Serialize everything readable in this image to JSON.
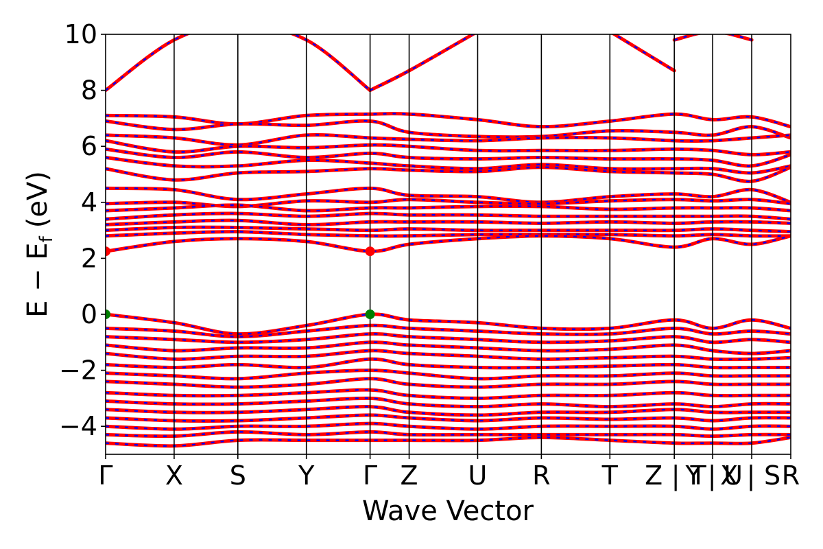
{
  "chart_data": {
    "type": "line",
    "xlabel": "Wave Vector",
    "ylabel": {
      "main": "E − E",
      "sub": "f",
      "unit": "(eV)"
    },
    "ylim": [
      -5,
      10
    ],
    "y_ticks": [
      10,
      8,
      6,
      4,
      2,
      0,
      -2,
      -4
    ],
    "y_tick_labels": [
      "10",
      "8",
      "6",
      "4",
      "2",
      "0",
      "−2",
      "−4"
    ],
    "grid": false,
    "legend": "none",
    "kpoints": [
      {
        "label": "Γ",
        "x": 0.0
      },
      {
        "label": "X",
        "x": 0.1
      },
      {
        "label": "S",
        "x": 0.193
      },
      {
        "label": "Y",
        "x": 0.293
      },
      {
        "label": "Γ",
        "x": 0.386
      },
      {
        "label": "Z",
        "x": 0.443
      },
      {
        "label": "U",
        "x": 0.543
      },
      {
        "label": "R",
        "x": 0.636
      },
      {
        "label": "T",
        "x": 0.736
      },
      {
        "label": "Z|Y",
        "x": 0.83
      },
      {
        "label": "T|X",
        "x": 0.886
      },
      {
        "label": "U|S",
        "x": 0.943
      },
      {
        "label": "R",
        "x": 1.0
      }
    ],
    "x_tick_labels": [
      {
        "text": "Γ",
        "x": 0.0
      },
      {
        "text": "X",
        "x": 0.1
      },
      {
        "text": "S",
        "x": 0.193
      },
      {
        "text": "Y",
        "x": 0.293
      },
      {
        "text": "Γ",
        "x": 0.386
      },
      {
        "text": "Z",
        "x": 0.443
      },
      {
        "text": "U",
        "x": 0.543
      },
      {
        "text": "R",
        "x": 0.636
      },
      {
        "text": "T",
        "x": 0.736
      },
      {
        "text": "Z",
        "x": 0.8
      },
      {
        "text": "|",
        "x": 0.832
      },
      {
        "text": "Y",
        "x": 0.858
      },
      {
        "text": "T",
        "x": 0.865
      },
      {
        "text": "|",
        "x": 0.885
      },
      {
        "text": "X",
        "x": 0.91
      },
      {
        "text": "U",
        "x": 0.916
      },
      {
        "text": "|",
        "x": 0.942
      },
      {
        "text": "S",
        "x": 0.973
      },
      {
        "text": "R",
        "x": 1.0
      }
    ],
    "markers": {
      "cbm": {
        "color": "#ff0000",
        "points": [
          {
            "x": 0.0,
            "y": 2.25
          },
          {
            "x": 0.386,
            "y": 2.25
          }
        ]
      },
      "vbm": {
        "color": "#008000",
        "points": [
          {
            "x": 0.0,
            "y": 0.0
          },
          {
            "x": 0.386,
            "y": 0.0
          }
        ]
      }
    },
    "colors": {
      "spin_up": "#ff0000",
      "spin_down": "#0000ff"
    },
    "series": [
      {
        "x": [
          0,
          0.1,
          0.193,
          0.293,
          0.386
        ],
        "y": [
          8.0,
          9.8,
          10.4,
          9.8,
          8.0
        ]
      },
      {
        "x": [
          0.386,
          0.443,
          0.543
        ],
        "y": [
          8.0,
          8.7,
          10.1
        ]
      },
      {
        "x": [
          0.736,
          0.83
        ],
        "y": [
          10.1,
          8.7
        ]
      },
      {
        "x": [
          0.83,
          0.886,
          0.943
        ],
        "y": [
          9.8,
          10.1,
          9.8
        ]
      },
      {
        "x": [
          0,
          0.1,
          0.193,
          0.293,
          0.386,
          0.443,
          0.543,
          0.636,
          0.736,
          0.83,
          0.886,
          0.943,
          1.0
        ],
        "y": [
          7.1,
          7.05,
          6.8,
          7.1,
          7.15,
          7.15,
          6.95,
          6.7,
          6.9,
          7.15,
          6.95,
          7.05,
          6.7
        ]
      },
      {
        "x": [
          0,
          0.1,
          0.193,
          0.293,
          0.386,
          0.443,
          0.543,
          0.636,
          0.736,
          0.83,
          0.886,
          0.943,
          1.0
        ],
        "y": [
          6.9,
          6.6,
          6.8,
          6.75,
          6.9,
          6.5,
          6.35,
          6.35,
          6.55,
          6.5,
          6.4,
          6.7,
          6.3
        ]
      },
      {
        "x": [
          0,
          0.1,
          0.193,
          0.293,
          0.386,
          0.443,
          0.543,
          0.636,
          0.736,
          0.83,
          0.886,
          0.943,
          1.0
        ],
        "y": [
          6.4,
          6.3,
          6.05,
          6.4,
          6.3,
          6.25,
          6.2,
          6.3,
          6.3,
          6.2,
          6.2,
          6.3,
          6.4
        ]
      },
      {
        "x": [
          0,
          0.1,
          0.193,
          0.293,
          0.386,
          0.443,
          0.543,
          0.636,
          0.736,
          0.83,
          0.886,
          0.943,
          1.0
        ],
        "y": [
          6.2,
          5.8,
          6.0,
          5.95,
          6.05,
          6.0,
          5.85,
          5.85,
          5.85,
          5.9,
          5.85,
          5.7,
          5.8
        ]
      },
      {
        "x": [
          0,
          0.1,
          0.193,
          0.293,
          0.386,
          0.443,
          0.543,
          0.636,
          0.736,
          0.83,
          0.886,
          0.943,
          1.0
        ],
        "y": [
          5.9,
          5.6,
          5.8,
          5.6,
          5.75,
          5.6,
          5.55,
          5.6,
          5.55,
          5.55,
          5.5,
          5.3,
          5.7
        ]
      },
      {
        "x": [
          0,
          0.1,
          0.193,
          0.293,
          0.386,
          0.443,
          0.543,
          0.636,
          0.736,
          0.83,
          0.886,
          0.943,
          1.0
        ],
        "y": [
          5.6,
          5.3,
          5.3,
          5.5,
          5.4,
          5.3,
          5.2,
          5.35,
          5.2,
          5.2,
          5.2,
          5.05,
          5.3
        ]
      },
      {
        "x": [
          0,
          0.1,
          0.193,
          0.293,
          0.386,
          0.443,
          0.543,
          0.636,
          0.736,
          0.83,
          0.886,
          0.943,
          1.0
        ],
        "y": [
          5.2,
          4.8,
          5.05,
          5.1,
          5.2,
          5.15,
          5.1,
          5.25,
          5.1,
          5.05,
          5.0,
          4.75,
          5.25
        ]
      },
      {
        "x": [
          0,
          0.1,
          0.193,
          0.293,
          0.386,
          0.443,
          0.543,
          0.636,
          0.736,
          0.83,
          0.886,
          0.943,
          1.0
        ],
        "y": [
          4.5,
          4.45,
          4.1,
          4.3,
          4.5,
          4.25,
          4.2,
          4.0,
          4.2,
          4.3,
          4.2,
          4.45,
          4.0
        ]
      },
      {
        "x": [
          0,
          0.1,
          0.193,
          0.293,
          0.386,
          0.443,
          0.543,
          0.636,
          0.736,
          0.83,
          0.886,
          0.943,
          1.0
        ],
        "y": [
          3.95,
          4.0,
          3.85,
          4.05,
          4.0,
          4.1,
          4.0,
          3.95,
          4.05,
          4.1,
          4.05,
          4.1,
          3.95
        ]
      },
      {
        "x": [
          0,
          0.1,
          0.193,
          0.293,
          0.386,
          0.443,
          0.543,
          0.636,
          0.736,
          0.83,
          0.886,
          0.943,
          1.0
        ],
        "y": [
          3.7,
          3.8,
          3.9,
          3.7,
          3.8,
          3.8,
          3.85,
          3.85,
          3.75,
          3.8,
          3.8,
          3.8,
          3.7
        ]
      },
      {
        "x": [
          0,
          0.1,
          0.193,
          0.293,
          0.386,
          0.443,
          0.543,
          0.636,
          0.736,
          0.83,
          0.886,
          0.943,
          1.0
        ],
        "y": [
          3.4,
          3.55,
          3.6,
          3.5,
          3.6,
          3.55,
          3.55,
          3.5,
          3.5,
          3.5,
          3.5,
          3.5,
          3.4
        ]
      },
      {
        "x": [
          0,
          0.1,
          0.193,
          0.293,
          0.386,
          0.443,
          0.543,
          0.636,
          0.736,
          0.83,
          0.886,
          0.943,
          1.0
        ],
        "y": [
          3.2,
          3.3,
          3.35,
          3.2,
          3.3,
          3.3,
          3.3,
          3.25,
          3.3,
          3.25,
          3.3,
          3.3,
          3.25
        ]
      },
      {
        "x": [
          0,
          0.1,
          0.193,
          0.293,
          0.386,
          0.443,
          0.543,
          0.636,
          0.736,
          0.83,
          0.886,
          0.943,
          1.0
        ],
        "y": [
          3.0,
          3.1,
          3.1,
          3.05,
          3.0,
          3.05,
          3.0,
          3.0,
          3.0,
          3.0,
          3.05,
          3.0,
          2.95
        ]
      },
      {
        "x": [
          0,
          0.1,
          0.193,
          0.293,
          0.386,
          0.443,
          0.543,
          0.636,
          0.736,
          0.83,
          0.886,
          0.943,
          1.0
        ],
        "y": [
          2.8,
          2.9,
          2.95,
          2.85,
          2.8,
          2.8,
          2.85,
          2.85,
          2.85,
          2.8,
          2.85,
          2.8,
          2.8
        ]
      },
      {
        "x": [
          0,
          0.1,
          0.193,
          0.293,
          0.386,
          0.443,
          0.543,
          0.636,
          0.736,
          0.83,
          0.886,
          0.943,
          1.0
        ],
        "y": [
          2.25,
          2.6,
          2.7,
          2.6,
          2.25,
          2.5,
          2.7,
          2.8,
          2.7,
          2.4,
          2.7,
          2.5,
          2.8
        ]
      },
      {
        "x": [
          0,
          0.1,
          0.193,
          0.293,
          0.386,
          0.443,
          0.543,
          0.636,
          0.736,
          0.83,
          0.886,
          0.943,
          1.0
        ],
        "y": [
          0.0,
          -0.3,
          -0.7,
          -0.4,
          0.0,
          -0.2,
          -0.3,
          -0.5,
          -0.5,
          -0.2,
          -0.5,
          -0.2,
          -0.5
        ]
      },
      {
        "x": [
          0,
          0.1,
          0.193,
          0.293,
          0.386,
          0.443,
          0.543,
          0.636,
          0.736,
          0.83,
          0.886,
          0.943,
          1.0
        ],
        "y": [
          -0.5,
          -0.6,
          -0.8,
          -0.6,
          -0.4,
          -0.5,
          -0.6,
          -0.7,
          -0.7,
          -0.5,
          -0.7,
          -0.6,
          -0.7
        ]
      },
      {
        "x": [
          0,
          0.1,
          0.193,
          0.293,
          0.386,
          0.443,
          0.543,
          0.636,
          0.736,
          0.83,
          0.886,
          0.943,
          1.0
        ],
        "y": [
          -0.8,
          -0.9,
          -1.0,
          -0.9,
          -0.7,
          -0.8,
          -0.9,
          -1.0,
          -0.95,
          -0.8,
          -1.0,
          -0.9,
          -1.0
        ]
      },
      {
        "x": [
          0,
          0.1,
          0.193,
          0.293,
          0.386,
          0.443,
          0.543,
          0.636,
          0.736,
          0.83,
          0.886,
          0.943,
          1.0
        ],
        "y": [
          -1.1,
          -1.3,
          -1.2,
          -1.2,
          -1.0,
          -1.1,
          -1.2,
          -1.3,
          -1.25,
          -1.1,
          -1.3,
          -1.4,
          -1.3
        ]
      },
      {
        "x": [
          0,
          0.1,
          0.193,
          0.293,
          0.386,
          0.443,
          0.543,
          0.636,
          0.736,
          0.83,
          0.886,
          0.943,
          1.0
        ],
        "y": [
          -1.4,
          -1.6,
          -1.5,
          -1.5,
          -1.3,
          -1.4,
          -1.5,
          -1.6,
          -1.55,
          -1.5,
          -1.6,
          -1.6,
          -1.55
        ]
      },
      {
        "x": [
          0,
          0.1,
          0.193,
          0.293,
          0.386,
          0.443,
          0.543,
          0.636,
          0.736,
          0.83,
          0.886,
          0.943,
          1.0
        ],
        "y": [
          -1.8,
          -1.9,
          -1.8,
          -1.9,
          -1.6,
          -1.8,
          -1.9,
          -1.9,
          -1.85,
          -1.8,
          -1.9,
          -1.9,
          -1.9
        ]
      },
      {
        "x": [
          0,
          0.1,
          0.193,
          0.293,
          0.386,
          0.443,
          0.543,
          0.636,
          0.736,
          0.83,
          0.886,
          0.943,
          1.0
        ],
        "y": [
          -2.1,
          -2.2,
          -2.3,
          -2.1,
          -2.0,
          -2.1,
          -2.3,
          -2.2,
          -2.2,
          -2.1,
          -2.2,
          -2.2,
          -2.2
        ]
      },
      {
        "x": [
          0,
          0.1,
          0.193,
          0.293,
          0.386,
          0.443,
          0.543,
          0.636,
          0.736,
          0.83,
          0.886,
          0.943,
          1.0
        ],
        "y": [
          -2.4,
          -2.5,
          -2.6,
          -2.5,
          -2.3,
          -2.5,
          -2.6,
          -2.5,
          -2.5,
          -2.4,
          -2.5,
          -2.5,
          -2.5
        ]
      },
      {
        "x": [
          0,
          0.1,
          0.193,
          0.293,
          0.386,
          0.443,
          0.543,
          0.636,
          0.736,
          0.83,
          0.886,
          0.943,
          1.0
        ],
        "y": [
          -2.8,
          -2.9,
          -2.9,
          -2.8,
          -2.7,
          -2.9,
          -3.0,
          -2.9,
          -2.9,
          -2.8,
          -2.9,
          -2.9,
          -2.9
        ]
      },
      {
        "x": [
          0,
          0.1,
          0.193,
          0.293,
          0.386,
          0.443,
          0.543,
          0.636,
          0.736,
          0.83,
          0.886,
          0.943,
          1.0
        ],
        "y": [
          -3.1,
          -3.2,
          -3.2,
          -3.1,
          -3.0,
          -3.2,
          -3.3,
          -3.2,
          -3.3,
          -3.2,
          -3.3,
          -3.2,
          -3.2
        ]
      },
      {
        "x": [
          0,
          0.1,
          0.193,
          0.293,
          0.386,
          0.443,
          0.543,
          0.636,
          0.736,
          0.83,
          0.886,
          0.943,
          1.0
        ],
        "y": [
          -3.4,
          -3.5,
          -3.5,
          -3.4,
          -3.3,
          -3.5,
          -3.6,
          -3.5,
          -3.5,
          -3.4,
          -3.5,
          -3.5,
          -3.5
        ]
      },
      {
        "x": [
          0,
          0.1,
          0.193,
          0.293,
          0.386,
          0.443,
          0.543,
          0.636,
          0.736,
          0.83,
          0.886,
          0.943,
          1.0
        ],
        "y": [
          -3.7,
          -3.8,
          -3.8,
          -3.7,
          -3.6,
          -3.7,
          -3.8,
          -3.7,
          -3.75,
          -3.7,
          -3.8,
          -3.7,
          -3.7
        ]
      },
      {
        "x": [
          0,
          0.1,
          0.193,
          0.293,
          0.386,
          0.443,
          0.543,
          0.636,
          0.736,
          0.83,
          0.886,
          0.943,
          1.0
        ],
        "y": [
          -4.0,
          -4.1,
          -4.0,
          -4.0,
          -3.9,
          -4.0,
          -4.1,
          -4.0,
          -4.0,
          -4.0,
          -4.1,
          -4.0,
          -4.0
        ]
      },
      {
        "x": [
          0,
          0.1,
          0.193,
          0.293,
          0.386,
          0.443,
          0.543,
          0.636,
          0.736,
          0.83,
          0.886,
          0.943,
          1.0
        ],
        "y": [
          -4.3,
          -4.35,
          -4.2,
          -4.3,
          -4.2,
          -4.3,
          -4.3,
          -4.3,
          -4.3,
          -4.3,
          -4.35,
          -4.3,
          -4.3
        ]
      },
      {
        "x": [
          0,
          0.1,
          0.193,
          0.293,
          0.386,
          0.443,
          0.543,
          0.636,
          0.736,
          0.83,
          0.886,
          0.943,
          1.0
        ],
        "y": [
          -4.6,
          -4.7,
          -4.5,
          -4.5,
          -4.5,
          -4.5,
          -4.5,
          -4.4,
          -4.5,
          -4.6,
          -4.6,
          -4.6,
          -4.4
        ]
      }
    ]
  }
}
